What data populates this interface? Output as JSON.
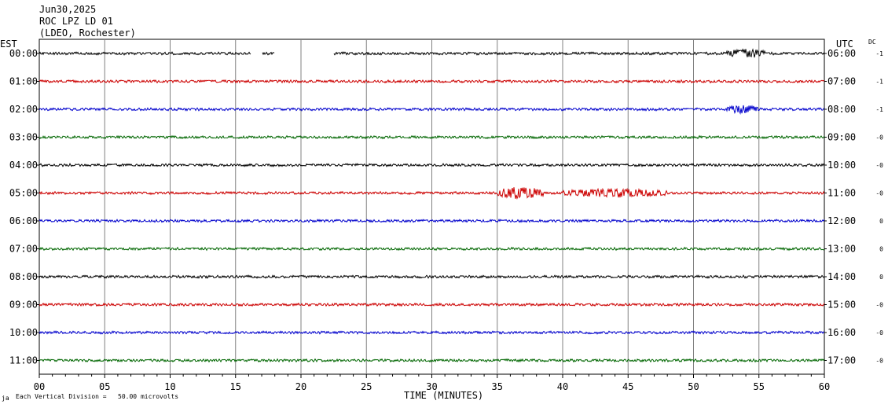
{
  "header": {
    "date": "Jun30,2025",
    "station": "ROC LPZ LD 01",
    "network": "(LDEO, Rochester)"
  },
  "left_axis_title": "EST",
  "right_axis_title": "UTC",
  "dc_title": "DC",
  "footer_note": "Each Vertical Division =   50.00 microvolts",
  "footer_mark": "ja",
  "chart_data": {
    "type": "line",
    "title": "",
    "xlabel": "TIME (MINUTES)",
    "ylabel": "",
    "xlim": [
      0,
      60
    ],
    "x_ticks": [
      "00",
      "05",
      "10",
      "15",
      "20",
      "25",
      "30",
      "35",
      "40",
      "45",
      "50",
      "55",
      "60"
    ],
    "grid": "vertical lines every 5 minutes",
    "trace_colors": [
      "#000000",
      "#cc0000",
      "#0000cc",
      "#006600"
    ],
    "traces": [
      {
        "est": "00:00",
        "utc": "06:00",
        "dc": "-1",
        "gaps": [
          [
            16.2,
            17.0
          ],
          [
            18.0,
            22.5
          ]
        ],
        "events": [
          [
            52.5,
            55.5,
            4
          ]
        ]
      },
      {
        "est": "01:00",
        "utc": "07:00",
        "dc": "-1",
        "gaps": [],
        "events": []
      },
      {
        "est": "02:00",
        "utc": "08:00",
        "dc": "-1",
        "gaps": [],
        "events": [
          [
            52.5,
            55.0,
            4
          ]
        ]
      },
      {
        "est": "03:00",
        "utc": "09:00",
        "dc": "-0",
        "gaps": [],
        "events": []
      },
      {
        "est": "04:00",
        "utc": "10:00",
        "dc": "-0",
        "gaps": [],
        "events": []
      },
      {
        "est": "05:00",
        "utc": "11:00",
        "dc": "-0",
        "gaps": [],
        "events": [
          [
            35.0,
            38.5,
            6
          ],
          [
            40.0,
            48.0,
            4
          ]
        ]
      },
      {
        "est": "06:00",
        "utc": "12:00",
        "dc": "0",
        "gaps": [],
        "events": []
      },
      {
        "est": "07:00",
        "utc": "13:00",
        "dc": "0",
        "gaps": [],
        "events": []
      },
      {
        "est": "08:00",
        "utc": "14:00",
        "dc": "0",
        "gaps": [],
        "events": []
      },
      {
        "est": "09:00",
        "utc": "15:00",
        "dc": "-0",
        "gaps": [],
        "events": []
      },
      {
        "est": "10:00",
        "utc": "16:00",
        "dc": "-0",
        "gaps": [],
        "events": []
      },
      {
        "est": "11:00",
        "utc": "17:00",
        "dc": "-0",
        "gaps": [],
        "events": []
      }
    ]
  }
}
